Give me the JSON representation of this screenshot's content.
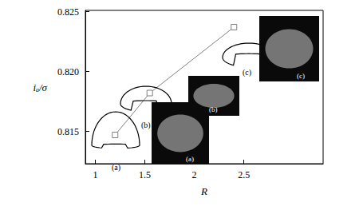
{
  "chart_data": {
    "type": "line",
    "x_label": "R",
    "y_label": "iₐ/σ",
    "x": [
      1.2,
      1.55,
      2.4
    ],
    "values": [
      0.8147,
      0.8182,
      0.8237
    ],
    "color": "#808080",
    "marker": "square",
    "line_style": "solid",
    "xlim": [
      0.9,
      3.3
    ],
    "ylim": [
      0.8123,
      0.8251
    ],
    "xticks": [
      1,
      1.5,
      2,
      2.5
    ],
    "yticks": [
      0.815,
      {
        "value": 0.82,
        "label": "0.820"
      },
      0.825
    ],
    "grid": false,
    "annotations": [
      "(a)",
      "(b)",
      "(c)"
    ]
  }
}
